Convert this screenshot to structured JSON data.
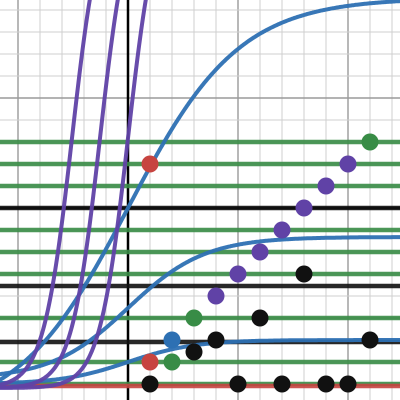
{
  "graph": {
    "background": "#ffffff",
    "gridline_color": "#cfcfcf",
    "axis_color": "#000000",
    "grid": true,
    "x_range": [
      -128,
      272
    ],
    "y_range": [
      -192,
      208
    ],
    "gridline_spacing": 22,
    "major_gridline_spacing": 110
  },
  "colors": {
    "green": "#388c46",
    "black": "#111111",
    "red": "#c74440",
    "blue": "#2d70b3",
    "purple": "#6042a6"
  },
  "chart_data": {
    "type": "scatter",
    "horizontal_lines": [
      {
        "color": "green",
        "ys": [
          66,
          44,
          22,
          -22,
          -44,
          -66,
          -110,
          -154,
          -176
        ]
      },
      {
        "color": "black",
        "ys": [
          0,
          -78,
          -134
        ]
      },
      {
        "color": "red",
        "ys": [
          -178
        ]
      }
    ],
    "curves": [
      {
        "color": "blue",
        "kind": "logistic",
        "L": 420,
        "k": 0.018,
        "x0": 0,
        "offset": -210
      },
      {
        "color": "blue",
        "kind": "logistic",
        "L": 142,
        "k": 0.026,
        "x0": 0,
        "offset": -171
      },
      {
        "color": "blue",
        "kind": "logistic",
        "L": 44,
        "k": 0.03,
        "x0": 0,
        "offset": -176
      },
      {
        "color": "purple",
        "kind": "logistic",
        "L": 500,
        "k": 0.07,
        "x0": -56,
        "offset": -180
      },
      {
        "color": "purple",
        "kind": "logistic",
        "L": 500,
        "k": 0.07,
        "x0": -28,
        "offset": -180
      },
      {
        "color": "purple",
        "kind": "logistic",
        "L": 500,
        "k": 0.07,
        "x0": 0,
        "offset": -180
      }
    ],
    "points": [
      {
        "color": "green",
        "x": 242,
        "y": 66
      },
      {
        "color": "red",
        "x": 22,
        "y": 44
      },
      {
        "color": "purple",
        "x": 220,
        "y": 44
      },
      {
        "color": "purple",
        "x": 198,
        "y": 22
      },
      {
        "color": "purple",
        "x": 176,
        "y": 0
      },
      {
        "color": "purple",
        "x": 154,
        "y": -22
      },
      {
        "color": "purple",
        "x": 132,
        "y": -44
      },
      {
        "color": "purple",
        "x": 110,
        "y": -66
      },
      {
        "color": "purple",
        "x": 88,
        "y": -88
      },
      {
        "color": "black",
        "x": 176,
        "y": -66
      },
      {
        "color": "green",
        "x": 66,
        "y": -110
      },
      {
        "color": "black",
        "x": 132,
        "y": -110
      },
      {
        "color": "blue",
        "x": 44,
        "y": -132
      },
      {
        "color": "black",
        "x": 88,
        "y": -132
      },
      {
        "color": "black",
        "x": 242,
        "y": -132
      },
      {
        "color": "black",
        "x": 66,
        "y": -144
      },
      {
        "color": "green",
        "x": 44,
        "y": -154
      },
      {
        "color": "red",
        "x": 22,
        "y": -154
      },
      {
        "color": "black",
        "x": 22,
        "y": -176
      },
      {
        "color": "black",
        "x": 110,
        "y": -176
      },
      {
        "color": "black",
        "x": 154,
        "y": -176
      },
      {
        "color": "black",
        "x": 198,
        "y": -176
      },
      {
        "color": "black",
        "x": 220,
        "y": -176
      }
    ]
  }
}
